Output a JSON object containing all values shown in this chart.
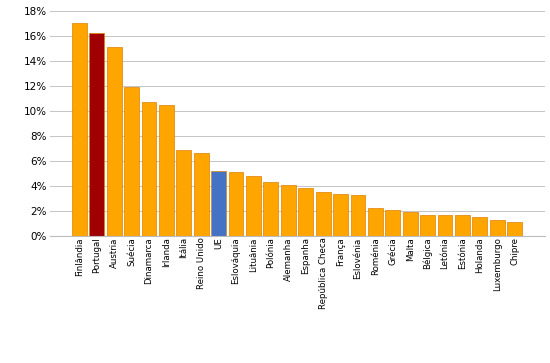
{
  "categories": [
    "Finlândia",
    "Portugal",
    "Austria",
    "Suécia",
    "Dinamarca",
    "Irlanda",
    "Itália",
    "Reino Unido",
    "UE",
    "Eslováquia",
    "Lituânia",
    "Polónia",
    "Alemanha",
    "Espanha",
    "República Checa",
    "França",
    "Eslovénia",
    "Roménia",
    "Grécia",
    "Malta",
    "Bélgica",
    "Letónia",
    "Estónia",
    "Holanda",
    "Luxemburgo",
    "Chipre"
  ],
  "values": [
    17.0,
    16.2,
    15.1,
    11.9,
    10.7,
    10.45,
    6.85,
    6.65,
    5.2,
    5.1,
    4.8,
    4.35,
    4.05,
    3.85,
    3.55,
    3.35,
    3.3,
    2.2,
    2.05,
    1.95,
    1.7,
    1.7,
    1.7,
    1.55,
    1.3,
    1.1
  ],
  "colors": [
    "#FFA500",
    "#A00000",
    "#FFA500",
    "#FFA500",
    "#FFA500",
    "#FFA500",
    "#FFA500",
    "#FFA500",
    "#4472C4",
    "#FFA500",
    "#FFA500",
    "#FFA500",
    "#FFA500",
    "#FFA500",
    "#FFA500",
    "#FFA500",
    "#FFA500",
    "#FFA500",
    "#FFA500",
    "#FFA500",
    "#FFA500",
    "#FFA500",
    "#FFA500",
    "#FFA500",
    "#FFA500",
    "#FFA500"
  ],
  "ylim": [
    0,
    18
  ],
  "yticks": [
    0,
    2,
    4,
    6,
    8,
    10,
    12,
    14,
    16,
    18
  ],
  "yticklabels": [
    "0%",
    "2%",
    "4%",
    "6%",
    "8%",
    "10%",
    "12%",
    "14%",
    "16%",
    "18%"
  ],
  "bar_edge_color": "#E08000",
  "grid_color": "#BBBBBB",
  "bg_color": "#FFFFFF",
  "xtick_fontsize": 6.2,
  "ytick_fontsize": 7.5,
  "bar_width": 0.85
}
